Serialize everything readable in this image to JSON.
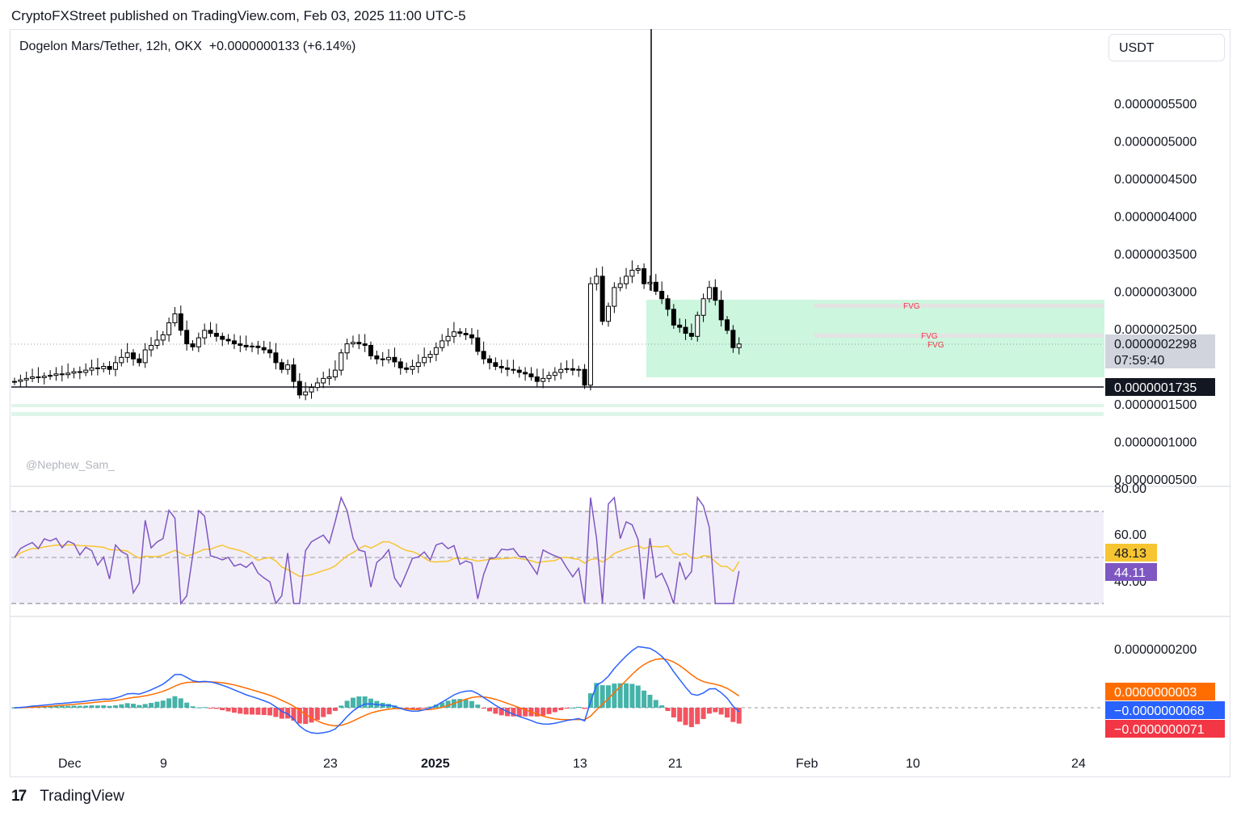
{
  "header": {
    "published": "CryptoFXStreet published on TradingView.com, Feb 03, 2025 11:00 UTC-5"
  },
  "legend": {
    "symbol": "Dogelon Mars/Tether, 12h, OKX",
    "change": "+0.0000000133 (+6.14%)"
  },
  "currency": "USDT",
  "watermark": "@Nephew_Sam_",
  "footer": {
    "logo": "17",
    "name": "TradingView"
  },
  "colors": {
    "up": "#ffffff",
    "down": "#000000",
    "fvg_zone": "#c8f5dc",
    "rsi_line": "#7e57c2",
    "rsi_ma": "#f7c531",
    "macd": "#2962ff",
    "signal": "#ff6d00",
    "hist_up": "#26a69a",
    "hist_down": "#f23645"
  },
  "chart_data": {
    "type": "candlestick",
    "price_axis": {
      "ticks": [
        "0.0000005500",
        "0.0000005000",
        "0.0000004500",
        "0.0000004000",
        "0.0000003500",
        "0.0000003000",
        "0.0000002500",
        "0.0000001500",
        "0.0000001000",
        "0.0000000500"
      ],
      "current_price": "0.0000002298",
      "countdown": "07:59:40",
      "support_line": "0.0000001735"
    },
    "annotations": [
      "FVG",
      "FVG",
      "FVG"
    ],
    "date_axis": [
      "Dec",
      "9",
      "23",
      "2025",
      "13",
      "21",
      "Feb",
      "10",
      "24"
    ],
    "rsi": {
      "ticks": [
        "80.00",
        "60.00",
        "40.00"
      ],
      "ma_value": "48.13",
      "rsi_value": "44.11",
      "upper_band": 70,
      "lower_band": 30,
      "mid": 50
    },
    "macd": {
      "ticks": [
        "0.0000000200"
      ],
      "signal_value": "0.0000000003",
      "macd_value": "−0.0000000068",
      "hist_value": "−0.0000000071"
    },
    "candles_note": "approximate close series (x 1e-7 USDT)",
    "closes": [
      1.8,
      1.82,
      1.84,
      1.86,
      1.85,
      1.87,
      1.88,
      1.9,
      1.89,
      1.91,
      1.93,
      1.92,
      1.95,
      1.98,
      1.97,
      2.0,
      1.96,
      2.05,
      2.12,
      2.18,
      2.1,
      2.05,
      2.22,
      2.28,
      2.35,
      2.42,
      2.58,
      2.7,
      2.48,
      2.3,
      2.26,
      2.38,
      2.48,
      2.44,
      2.4,
      2.36,
      2.34,
      2.3,
      2.28,
      2.26,
      2.27,
      2.25,
      2.22,
      2.18,
      2.05,
      1.96,
      2.02,
      1.8,
      1.62,
      1.66,
      1.72,
      1.78,
      1.84,
      1.86,
      1.95,
      2.18,
      2.3,
      2.32,
      2.3,
      2.28,
      2.14,
      2.1,
      2.09,
      2.12,
      2.06,
      1.98,
      1.96,
      2.0,
      2.05,
      2.12,
      2.16,
      2.25,
      2.34,
      2.4,
      2.46,
      2.44,
      2.42,
      2.38,
      2.2,
      2.1,
      2.05,
      2.0,
      1.98,
      1.96,
      1.95,
      1.92,
      1.9,
      1.86,
      1.8,
      1.84,
      1.88,
      1.92,
      1.96,
      1.97,
      1.95,
      1.96,
      1.75,
      3.1,
      3.2,
      2.6,
      2.8,
      3.05,
      3.1,
      3.2,
      3.28,
      3.3,
      3.1,
      3.12,
      3.0,
      2.9,
      2.76,
      2.55,
      2.52,
      2.44,
      2.4,
      2.68,
      2.9,
      3.05,
      2.88,
      2.62,
      2.48,
      2.25,
      2.298
    ]
  }
}
